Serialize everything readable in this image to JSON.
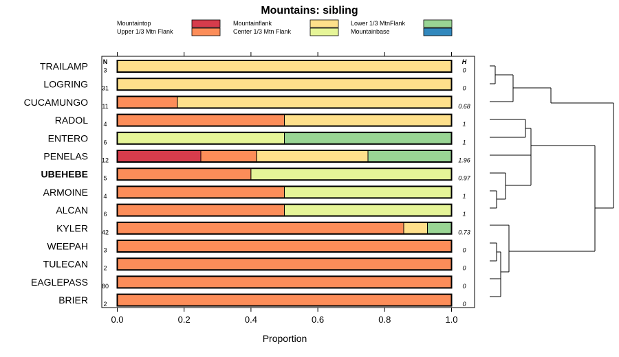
{
  "chart_data": {
    "type": "stacked-bar-horizontal",
    "title": "Mountains: sibling",
    "xlabel": "Proportion",
    "xlim": [
      0,
      1
    ],
    "xticks": [
      "0.0",
      "0.2",
      "0.4",
      "0.6",
      "0.8",
      "1.0"
    ],
    "xtick_values": [
      0,
      0.2,
      0.4,
      0.6,
      0.8,
      1.0
    ],
    "n_header": "N",
    "h_header": "H",
    "legend": [
      {
        "name": "Mountaintop",
        "color": "#d63c4c"
      },
      {
        "name": "Upper 1/3 Mtn Flank",
        "color": "#fc8d59"
      },
      {
        "name": "Mountainflank",
        "color": "#fee08b"
      },
      {
        "name": "Center 1/3 Mtn Flank",
        "color": "#e6f598"
      },
      {
        "name": "Lower 1/3 MtnFlank",
        "color": "#99d594"
      },
      {
        "name": "Mountainbase",
        "color": "#3288bd"
      }
    ],
    "rows": [
      {
        "label": "TRAILAMP",
        "n": "3",
        "h": "0",
        "bold": false,
        "segments": [
          0,
          0,
          1,
          0,
          0,
          0
        ]
      },
      {
        "label": "LOGRING",
        "n": "31",
        "h": "0",
        "bold": false,
        "segments": [
          0,
          0,
          1,
          0,
          0,
          0
        ]
      },
      {
        "label": "CUCAMUNGO",
        "n": "11",
        "h": "0.68",
        "bold": false,
        "segments": [
          0,
          0.18,
          0.82,
          0,
          0,
          0
        ]
      },
      {
        "label": "RADOL",
        "n": "4",
        "h": "1",
        "bold": false,
        "segments": [
          0,
          0.5,
          0.5,
          0,
          0,
          0
        ]
      },
      {
        "label": "ENTERO",
        "n": "6",
        "h": "1",
        "bold": false,
        "segments": [
          0,
          0,
          0,
          0.5,
          0.5,
          0
        ]
      },
      {
        "label": "PENELAS",
        "n": "12",
        "h": "1.96",
        "bold": false,
        "segments": [
          0.25,
          0.167,
          0.333,
          0,
          0.25,
          0
        ]
      },
      {
        "label": "UBEHEBE",
        "n": "5",
        "h": "0.97",
        "bold": true,
        "segments": [
          0,
          0.4,
          0,
          0.6,
          0,
          0
        ]
      },
      {
        "label": "ARMOINE",
        "n": "4",
        "h": "1",
        "bold": false,
        "segments": [
          0,
          0.5,
          0,
          0.5,
          0,
          0
        ]
      },
      {
        "label": "ALCAN",
        "n": "6",
        "h": "1",
        "bold": false,
        "segments": [
          0,
          0.5,
          0,
          0.5,
          0,
          0
        ]
      },
      {
        "label": "KYLER",
        "n": "42",
        "h": "0.73",
        "bold": false,
        "segments": [
          0,
          0.857,
          0.071,
          0,
          0.072,
          0
        ]
      },
      {
        "label": "WEEPAH",
        "n": "3",
        "h": "0",
        "bold": false,
        "segments": [
          0,
          1,
          0,
          0,
          0,
          0
        ]
      },
      {
        "label": "TULECAN",
        "n": "2",
        "h": "0",
        "bold": false,
        "segments": [
          0,
          1,
          0,
          0,
          0,
          0
        ]
      },
      {
        "label": "EAGLEPASS",
        "n": "80",
        "h": "0",
        "bold": false,
        "segments": [
          0,
          1,
          0,
          0,
          0,
          0
        ]
      },
      {
        "label": "BRIER",
        "n": "2",
        "h": "0",
        "bold": false,
        "segments": [
          0,
          1,
          0,
          0,
          0,
          0
        ]
      }
    ]
  }
}
